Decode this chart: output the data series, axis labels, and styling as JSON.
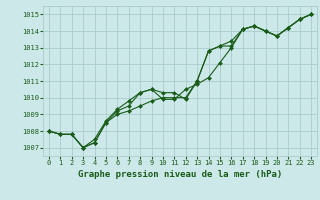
{
  "title": "Graphe pression niveau de la mer (hPa)",
  "bg_color": "#cce8e8",
  "grid_color": "#aacccc",
  "line_color": "#1a5c1a",
  "marker_color": "#1a5c1a",
  "xlim": [
    -0.5,
    23.5
  ],
  "ylim": [
    1006.5,
    1015.5
  ],
  "xticks": [
    0,
    1,
    2,
    3,
    4,
    5,
    6,
    7,
    8,
    9,
    10,
    11,
    12,
    13,
    14,
    15,
    16,
    17,
    18,
    19,
    20,
    21,
    22,
    23
  ],
  "yticks": [
    1007,
    1008,
    1009,
    1010,
    1011,
    1012,
    1013,
    1014,
    1015
  ],
  "series1": [
    1008.0,
    1007.8,
    1007.8,
    1007.0,
    1007.3,
    1008.5,
    1009.2,
    1009.5,
    1010.3,
    1010.5,
    1010.3,
    1010.3,
    1009.9,
    1011.0,
    1012.8,
    1013.1,
    1013.1,
    1014.1,
    1014.3,
    1014.0,
    1013.7,
    1014.2,
    1014.7,
    1015.0
  ],
  "series2": [
    1008.0,
    1007.8,
    1007.8,
    1007.0,
    1007.5,
    1008.6,
    1009.3,
    1009.8,
    1010.3,
    1010.5,
    1009.9,
    1009.9,
    1010.5,
    1010.8,
    1011.2,
    1012.1,
    1013.0,
    1014.1,
    1014.3,
    1014.0,
    1013.7,
    1014.2,
    1014.7,
    1015.0
  ],
  "series3": [
    1008.0,
    1007.8,
    1007.8,
    1007.0,
    1007.3,
    1008.5,
    1009.0,
    1009.2,
    1009.5,
    1009.8,
    1010.0,
    1010.0,
    1010.0,
    1011.0,
    1012.8,
    1013.1,
    1013.4,
    1014.1,
    1014.3,
    1014.0,
    1013.7,
    1014.2,
    1014.7,
    1015.0
  ],
  "title_fontsize": 6.5,
  "tick_fontsize": 5.0
}
